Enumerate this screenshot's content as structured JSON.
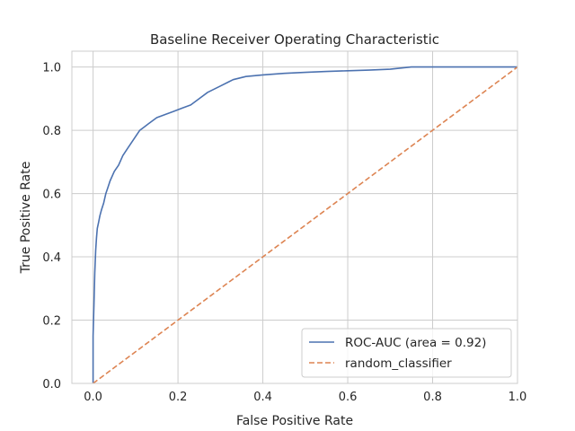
{
  "chart_data": {
    "type": "line",
    "title": "Baseline Receiver Operating Characteristic",
    "xlabel": "False Positive Rate",
    "ylabel": "True Positive Rate",
    "xlim": [
      -0.05,
      1.0
    ],
    "ylim": [
      0.0,
      1.05
    ],
    "xticks": [
      "0.0",
      "0.2",
      "0.4",
      "0.6",
      "0.8",
      "1.0"
    ],
    "yticks": [
      "0.0",
      "0.2",
      "0.4",
      "0.6",
      "0.8",
      "1.0"
    ],
    "grid": true,
    "legend_position": "lower-right",
    "series": [
      {
        "name": "ROC-AUC (area = 0.92)",
        "color": "#4c72b0",
        "style": "solid",
        "x": [
          0.0,
          0.0,
          0.002,
          0.004,
          0.006,
          0.008,
          0.01,
          0.013,
          0.016,
          0.02,
          0.025,
          0.03,
          0.035,
          0.04,
          0.05,
          0.06,
          0.07,
          0.08,
          0.09,
          0.1,
          0.11,
          0.12,
          0.13,
          0.15,
          0.17,
          0.19,
          0.21,
          0.23,
          0.25,
          0.27,
          0.3,
          0.33,
          0.36,
          0.4,
          0.45,
          0.5,
          0.55,
          0.6,
          0.65,
          0.7,
          0.75,
          0.8,
          1.0
        ],
        "y": [
          0.0,
          0.15,
          0.25,
          0.35,
          0.42,
          0.46,
          0.49,
          0.51,
          0.53,
          0.55,
          0.57,
          0.6,
          0.62,
          0.64,
          0.67,
          0.69,
          0.72,
          0.74,
          0.76,
          0.78,
          0.8,
          0.81,
          0.82,
          0.84,
          0.85,
          0.86,
          0.87,
          0.88,
          0.9,
          0.92,
          0.94,
          0.96,
          0.97,
          0.975,
          0.98,
          0.983,
          0.986,
          0.988,
          0.99,
          0.993,
          1.0,
          1.0,
          1.0
        ]
      },
      {
        "name": "random_classifier",
        "color": "#dd8452",
        "style": "dashed",
        "x": [
          0.0,
          1.0
        ],
        "y": [
          0.0,
          1.0
        ]
      }
    ]
  }
}
